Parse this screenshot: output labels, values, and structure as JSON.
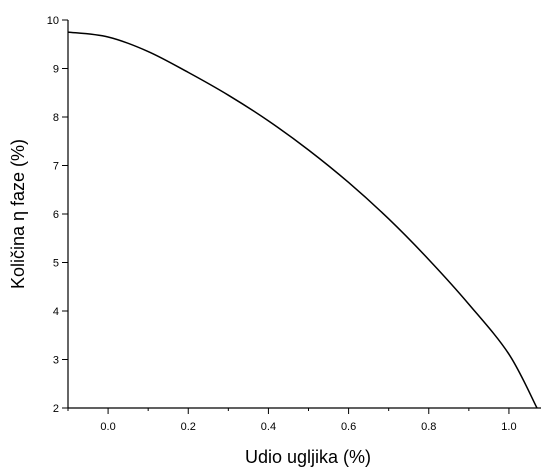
{
  "chart_data": {
    "type": "line",
    "title": "",
    "xlabel": "Udio ugljika (%)",
    "ylabel": "Količina η faze (%)",
    "xlim": [
      -0.1,
      1.08
    ],
    "ylim": [
      2,
      10
    ],
    "x_ticks": [
      0.0,
      0.2,
      0.4,
      0.6,
      0.8,
      1.0
    ],
    "x_tick_labels": [
      "0.0",
      "0.2",
      "0.4",
      "0.6",
      "0.8",
      "1.0"
    ],
    "y_ticks": [
      2,
      3,
      4,
      5,
      6,
      7,
      8,
      9,
      10
    ],
    "y_tick_labels": [
      "2",
      "3",
      "4",
      "5",
      "6",
      "7",
      "8",
      "9",
      "10"
    ],
    "grid": false,
    "series": [
      {
        "color": "#000000",
        "x": [
          -0.1,
          0.0,
          0.1,
          0.2,
          0.3,
          0.4,
          0.5,
          0.6,
          0.7,
          0.8,
          0.9,
          1.0,
          1.07
        ],
        "y": [
          9.75,
          9.65,
          9.35,
          8.92,
          8.45,
          7.92,
          7.32,
          6.65,
          5.9,
          5.06,
          4.14,
          3.11,
          2.0
        ]
      }
    ]
  }
}
